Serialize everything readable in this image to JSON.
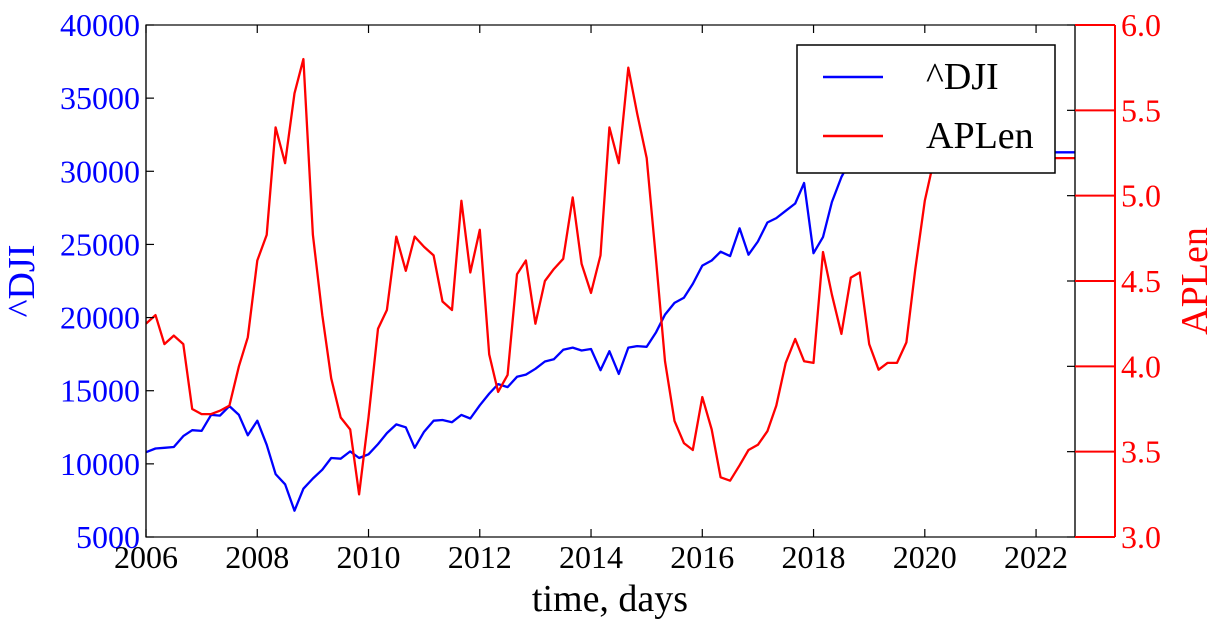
{
  "chart_data": {
    "type": "line",
    "xlabel": "time, days",
    "x_ticks": [
      "2006",
      "2008",
      "2010",
      "2012",
      "2014",
      "2016",
      "2018",
      "2020",
      "2022"
    ],
    "xlim": [
      2006.0,
      2022.7
    ],
    "left_axis": {
      "label": "^DJI",
      "ylim": [
        5000,
        40000
      ],
      "ticks": [
        "5000",
        "10000",
        "15000",
        "20000",
        "25000",
        "30000",
        "35000",
        "40000"
      ],
      "color": "#0000ff"
    },
    "right_axis": {
      "label": "APLen",
      "ylim": [
        3.0,
        6.0
      ],
      "ticks": [
        "3.0",
        "3.5",
        "4.0",
        "4.5",
        "5.0",
        "5.5",
        "6.0"
      ],
      "color": "#ff0000"
    },
    "legend": {
      "position": "top-right",
      "entries": [
        "^DJI",
        "APLen"
      ]
    },
    "grid": false,
    "series": [
      {
        "name": "^DJI",
        "axis": "left",
        "color": "#0000ff",
        "x": [
          2006.0,
          2006.17,
          2006.33,
          2006.5,
          2006.67,
          2006.83,
          2007.0,
          2007.17,
          2007.33,
          2007.5,
          2007.67,
          2007.83,
          2008.0,
          2008.17,
          2008.33,
          2008.5,
          2008.67,
          2008.83,
          2009.0,
          2009.17,
          2009.33,
          2009.5,
          2009.67,
          2009.83,
          2010.0,
          2010.17,
          2010.33,
          2010.5,
          2010.67,
          2010.83,
          2011.0,
          2011.17,
          2011.33,
          2011.5,
          2011.67,
          2011.83,
          2012.0,
          2012.17,
          2012.33,
          2012.5,
          2012.67,
          2012.83,
          2013.0,
          2013.17,
          2013.33,
          2013.5,
          2013.67,
          2013.83,
          2014.0,
          2014.17,
          2014.33,
          2014.5,
          2014.67,
          2014.83,
          2015.0,
          2015.17,
          2015.33,
          2015.5,
          2015.67,
          2015.83,
          2016.0,
          2016.17,
          2016.33,
          2016.5,
          2016.67,
          2016.83,
          2017.0,
          2017.17,
          2017.33,
          2017.5,
          2017.67,
          2017.83,
          2018.0,
          2018.17,
          2018.33,
          2018.5,
          2018.67,
          2018.83,
          2019.0,
          2019.17,
          2019.33,
          2019.5,
          2019.67,
          2019.83,
          2020.0,
          2020.17,
          2020.33,
          2020.5,
          2020.67,
          2020.83,
          2021.0,
          2021.17,
          2021.33,
          2021.5,
          2021.67,
          2021.83,
          2022.0,
          2022.17,
          2022.33,
          2022.5,
          2022.7
        ],
        "values": [
          10800,
          11050,
          11100,
          11150,
          11900,
          12300,
          12250,
          13350,
          13300,
          13950,
          13350,
          11950,
          12950,
          11300,
          9300,
          8600,
          6800,
          8300,
          9000,
          9600,
          10400,
          10350,
          10850,
          10400,
          10650,
          11350,
          12100,
          12700,
          12500,
          11100,
          12200,
          12950,
          13000,
          12850,
          13350,
          13100,
          14000,
          14800,
          15450,
          15250,
          15950,
          16100,
          16500,
          17000,
          17150,
          17800,
          17950,
          17750,
          17850,
          16400,
          17700,
          16150,
          17950,
          18050,
          18000,
          19000,
          20200,
          21000,
          21350,
          22300,
          23550,
          23900,
          24500,
          24200,
          26100,
          24300,
          25200,
          26500,
          26800,
          27300,
          27800,
          29200,
          24400,
          25500,
          27900,
          29600,
          30800,
          31400,
          32000,
          33000,
          34000,
          35000,
          33700,
          30600,
          31300,
          31300,
          31300,
          31300,
          31300,
          31300,
          31300,
          31300,
          31300,
          31300,
          31300,
          31300,
          31300,
          31300,
          31300,
          31300,
          31300
        ]
      },
      {
        "name": "APLen",
        "axis": "right",
        "color": "#ff0000",
        "x": [
          2006.0,
          2006.17,
          2006.33,
          2006.5,
          2006.67,
          2006.83,
          2007.0,
          2007.17,
          2007.33,
          2007.5,
          2007.67,
          2007.83,
          2008.0,
          2008.17,
          2008.33,
          2008.5,
          2008.67,
          2008.83,
          2009.0,
          2009.17,
          2009.33,
          2009.5,
          2009.67,
          2009.83,
          2010.0,
          2010.17,
          2010.33,
          2010.5,
          2010.67,
          2010.83,
          2011.0,
          2011.17,
          2011.33,
          2011.5,
          2011.67,
          2011.83,
          2012.0,
          2012.17,
          2012.33,
          2012.5,
          2012.67,
          2012.83,
          2013.0,
          2013.17,
          2013.33,
          2013.5,
          2013.67,
          2013.83,
          2014.0,
          2014.17,
          2014.33,
          2014.5,
          2014.67,
          2014.83,
          2015.0,
          2015.17,
          2015.33,
          2015.5,
          2015.67,
          2015.83,
          2016.0,
          2016.17,
          2016.33,
          2016.5,
          2016.67,
          2016.83,
          2017.0,
          2017.17,
          2017.33,
          2017.5,
          2017.67,
          2017.83,
          2018.0,
          2018.17,
          2018.33,
          2018.5,
          2018.67,
          2018.83,
          2019.0,
          2019.17,
          2019.33,
          2019.5,
          2019.67,
          2019.83,
          2020.0,
          2020.17,
          2020.33,
          2020.5,
          2020.67,
          2020.83,
          2021.0,
          2021.17,
          2021.33,
          2021.5,
          2021.67,
          2021.83,
          2022.0,
          2022.17,
          2022.33,
          2022.5,
          2022.7
        ],
        "values": [
          4.25,
          4.3,
          4.13,
          4.18,
          4.13,
          3.75,
          3.72,
          3.72,
          3.74,
          3.77,
          4.0,
          4.17,
          4.62,
          4.77,
          5.4,
          5.19,
          5.6,
          5.8,
          4.77,
          4.3,
          3.93,
          3.7,
          3.63,
          3.25,
          3.7,
          4.22,
          4.33,
          4.76,
          4.56,
          4.76,
          4.7,
          4.65,
          4.38,
          4.33,
          4.97,
          4.55,
          4.8,
          4.07,
          3.85,
          3.95,
          4.54,
          4.62,
          4.25,
          4.5,
          4.57,
          4.63,
          4.99,
          4.6,
          4.43,
          4.65,
          5.4,
          5.19,
          5.75,
          5.48,
          5.22,
          4.62,
          4.03,
          3.68,
          3.55,
          3.51,
          3.82,
          3.63,
          3.35,
          3.33,
          3.42,
          3.51,
          3.54,
          3.62,
          3.77,
          4.02,
          4.16,
          4.03,
          4.02,
          4.67,
          4.42,
          4.19,
          4.52,
          4.55,
          4.13,
          3.98,
          4.02,
          4.02,
          4.14,
          4.57,
          4.97,
          5.22,
          5.22,
          5.22,
          5.22,
          5.22,
          5.22,
          5.22,
          5.22,
          5.22,
          5.22,
          5.22,
          5.22,
          5.22,
          5.22,
          5.22,
          5.22
        ]
      }
    ]
  }
}
